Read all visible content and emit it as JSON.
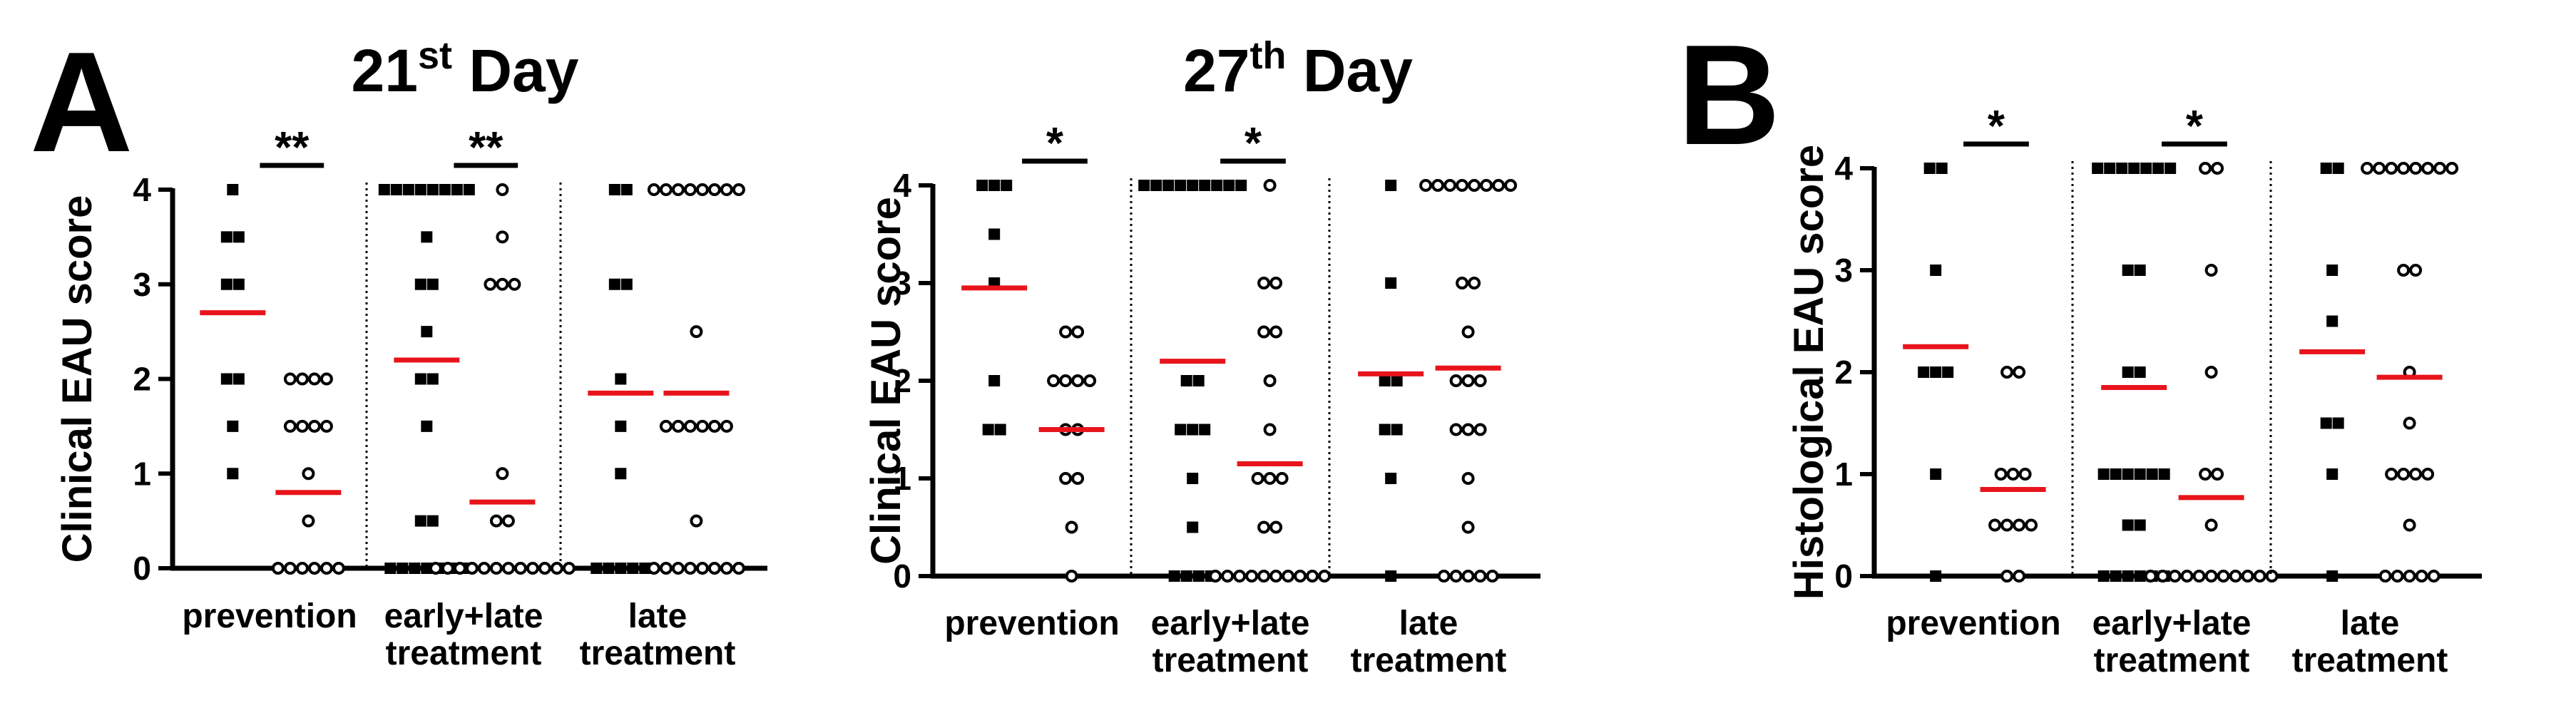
{
  "figure": {
    "panel_letters": [
      "A",
      "B"
    ]
  },
  "chart_data": [
    {
      "type": "scatter",
      "panel": "A",
      "title": "21",
      "title_sup": "st",
      "title_suffix": " Day",
      "ylabel": "Clinical EAU score",
      "ylim": [
        0,
        4
      ],
      "yticks": [
        "0",
        "1",
        "2",
        "3",
        "4"
      ],
      "groups": [
        {
          "label_lines": [
            "prevention"
          ],
          "series": [
            {
              "marker": "square",
              "values": [
                4,
                3.5,
                3.5,
                3,
                3,
                2,
                2,
                1.5,
                1
              ],
              "mean": 2.7
            },
            {
              "marker": "circle",
              "values": [
                2,
                2,
                2,
                2,
                1.5,
                1.5,
                1.5,
                1.5,
                1,
                0.5,
                0,
                0,
                0,
                0,
                0,
                0
              ],
              "mean": 0.8
            }
          ]
        },
        {
          "label_lines": [
            "early+late",
            "treatment"
          ],
          "series": [
            {
              "marker": "square",
              "values": [
                4,
                4,
                4,
                4,
                4,
                4,
                4,
                4,
                3.5,
                3,
                3,
                2.5,
                2,
                2,
                1.5,
                0.5,
                0.5,
                0,
                0,
                0,
                0,
                0,
                0,
                0
              ],
              "mean": 2.2
            },
            {
              "marker": "circle",
              "values": [
                4,
                3.5,
                3,
                3,
                3,
                1,
                0.5,
                0.5,
                0,
                0,
                0,
                0,
                0,
                0,
                0,
                0,
                0,
                0,
                0,
                0
              ],
              "mean": 0.7
            }
          ]
        },
        {
          "label_lines": [
            "late",
            "treatment"
          ],
          "series": [
            {
              "marker": "square",
              "values": [
                4,
                4,
                3,
                3,
                2,
                1.5,
                1,
                0,
                0,
                0,
                0,
                0
              ],
              "mean": 1.85
            },
            {
              "marker": "circle",
              "values": [
                4,
                4,
                4,
                4,
                4,
                4,
                4,
                4,
                2.5,
                1.5,
                1.5,
                1.5,
                1.5,
                1.5,
                1.5,
                0.5,
                0,
                0,
                0,
                0,
                0,
                0,
                0,
                0
              ],
              "mean": 1.85
            }
          ]
        }
      ],
      "significance": [
        {
          "group": 0,
          "label": "**"
        },
        {
          "group": 1,
          "label": "**"
        }
      ]
    },
    {
      "type": "scatter",
      "panel": "",
      "title": "27",
      "title_sup": "th",
      "title_suffix": " Day",
      "ylabel": "Clinical EAU score",
      "ylim": [
        0,
        4
      ],
      "yticks": [
        "0",
        "1",
        "2",
        "3",
        "4"
      ],
      "groups": [
        {
          "label_lines": [
            "prevention"
          ],
          "series": [
            {
              "marker": "square",
              "values": [
                4,
                4,
                4,
                3.5,
                3,
                2,
                1.5,
                1.5
              ],
              "mean": 2.95
            },
            {
              "marker": "circle",
              "values": [
                2.5,
                2.5,
                2,
                2,
                2,
                2,
                1.5,
                1.5,
                1,
                1,
                0.5,
                0
              ],
              "mean": 1.5
            }
          ]
        },
        {
          "label_lines": [
            "early+late",
            "treatment"
          ],
          "series": [
            {
              "marker": "square",
              "values": [
                4,
                4,
                4,
                4,
                4,
                4,
                4,
                4,
                4,
                2,
                2,
                1.5,
                1.5,
                1.5,
                1,
                0.5,
                0,
                0,
                0,
                0
              ],
              "mean": 2.2
            },
            {
              "marker": "circle",
              "values": [
                4,
                3,
                3,
                2.5,
                2.5,
                2,
                1.5,
                1,
                1,
                1,
                0.5,
                0.5,
                0,
                0,
                0,
                0,
                0,
                0,
                0,
                0,
                0,
                0
              ],
              "mean": 1.15
            }
          ]
        },
        {
          "label_lines": [
            "late",
            "treatment"
          ],
          "series": [
            {
              "marker": "square",
              "values": [
                4,
                3,
                2,
                2,
                1.5,
                1.5,
                1,
                0
              ],
              "mean": 2.07
            },
            {
              "marker": "circle",
              "values": [
                4,
                4,
                4,
                4,
                4,
                4,
                4,
                4,
                3,
                3,
                2.5,
                2,
                2,
                2,
                1.5,
                1.5,
                1.5,
                1,
                0.5,
                0,
                0,
                0,
                0,
                0
              ],
              "mean": 2.13
            }
          ]
        }
      ],
      "significance": [
        {
          "group": 0,
          "label": "*"
        },
        {
          "group": 1,
          "label": "*"
        }
      ]
    },
    {
      "type": "scatter",
      "panel": "B",
      "title": "",
      "title_sup": "",
      "title_suffix": "",
      "ylabel": "Histological EAU score",
      "ylim": [
        0,
        4
      ],
      "yticks": [
        "0",
        "1",
        "2",
        "3",
        "4"
      ],
      "groups": [
        {
          "label_lines": [
            "prevention"
          ],
          "series": [
            {
              "marker": "square",
              "values": [
                4,
                4,
                3,
                2,
                2,
                2,
                1,
                0
              ],
              "mean": 2.25
            },
            {
              "marker": "circle",
              "values": [
                2,
                2,
                1,
                1,
                1,
                0.5,
                0.5,
                0.5,
                0.5,
                0,
                0
              ],
              "mean": 0.85
            }
          ]
        },
        {
          "label_lines": [
            "early+late",
            "treatment"
          ],
          "series": [
            {
              "marker": "square",
              "values": [
                4,
                4,
                4,
                4,
                4,
                4,
                4,
                3,
                3,
                2,
                2,
                1,
                1,
                1,
                1,
                1,
                1,
                0.5,
                0.5,
                0,
                0,
                0,
                0,
                0,
                0
              ],
              "mean": 1.85
            },
            {
              "marker": "circle",
              "values": [
                4,
                4,
                3,
                2,
                1,
                1,
                0.5,
                0,
                0,
                0,
                0,
                0,
                0,
                0,
                0,
                0,
                0,
                0
              ],
              "mean": 0.77
            }
          ]
        },
        {
          "label_lines": [
            "late",
            "treatment"
          ],
          "series": [
            {
              "marker": "square",
              "values": [
                4,
                4,
                3,
                2.5,
                1.5,
                1.5,
                1,
                0
              ],
              "mean": 2.2
            },
            {
              "marker": "circle",
              "values": [
                4,
                4,
                4,
                4,
                4,
                4,
                4,
                4,
                3,
                3,
                2,
                1.5,
                1,
                1,
                1,
                1,
                0.5,
                0,
                0,
                0,
                0,
                0
              ],
              "mean": 1.95
            }
          ]
        }
      ],
      "significance": [
        {
          "group": 0,
          "label": "*"
        },
        {
          "group": 1,
          "label": "*"
        }
      ]
    }
  ]
}
